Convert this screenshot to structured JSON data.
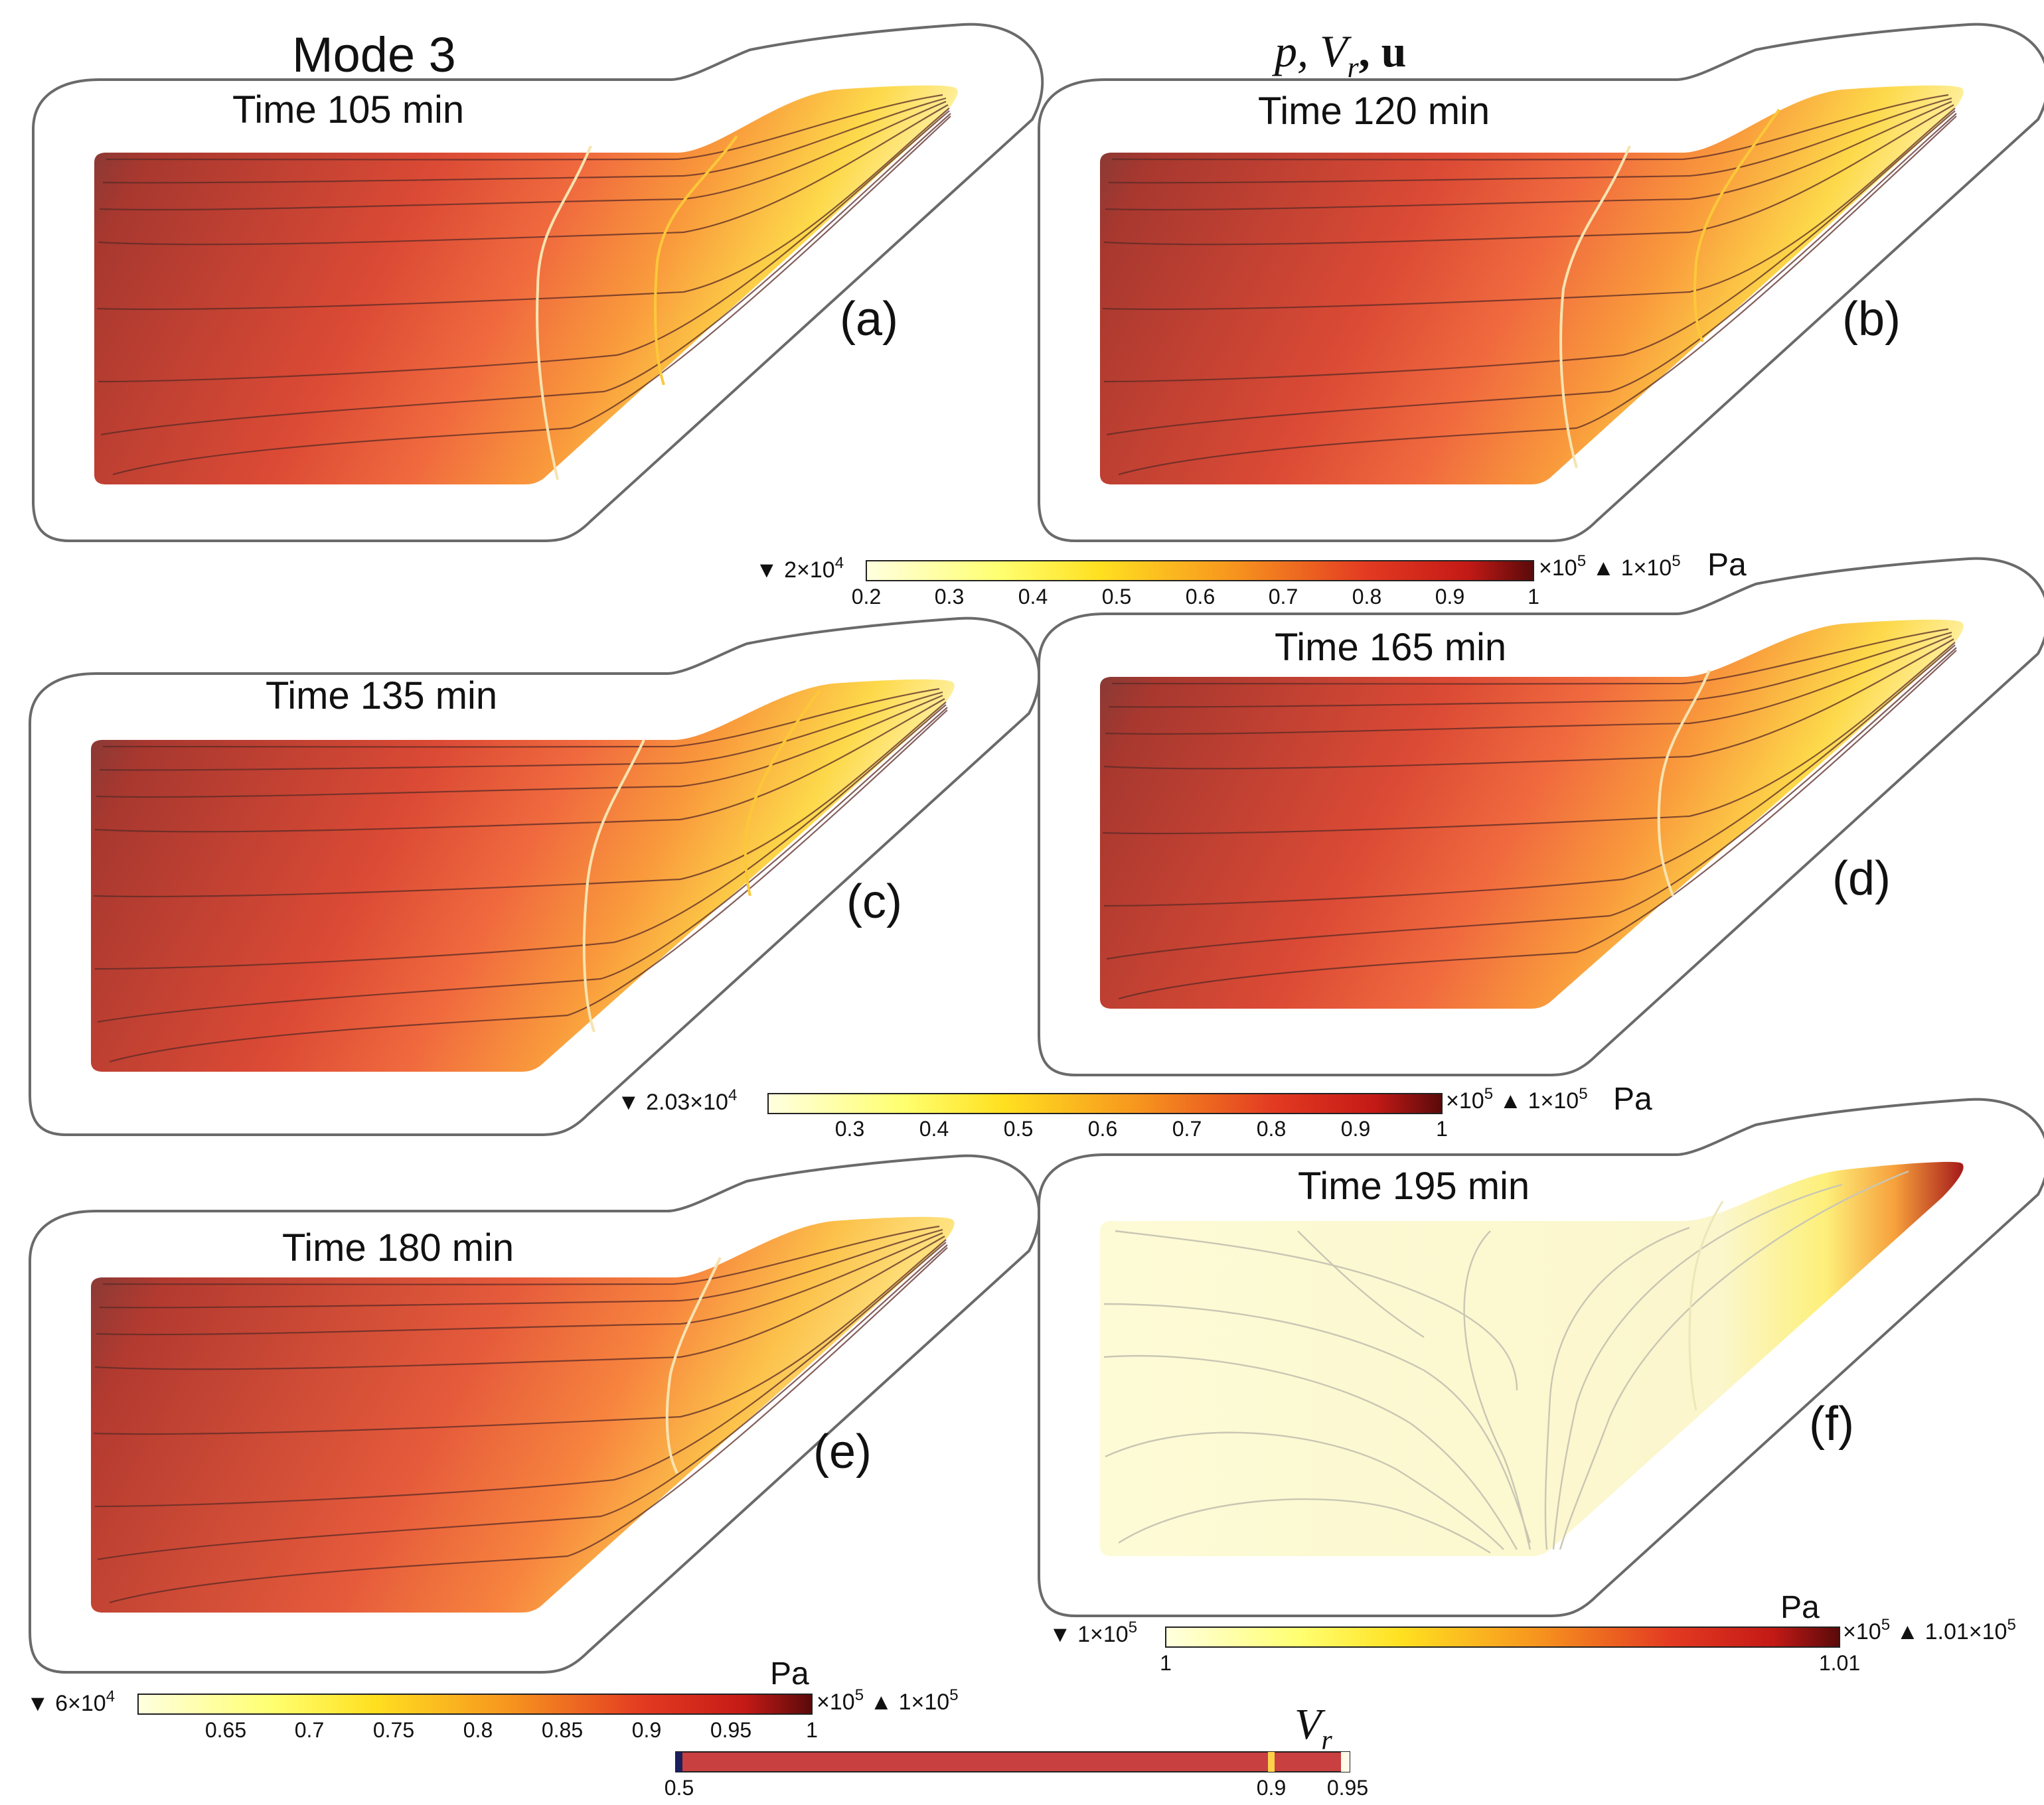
{
  "header": {
    "mode_title": "Mode 3",
    "fields_label": "p, V",
    "fields_sub": "r",
    "fields_rest": ", u"
  },
  "panels": [
    {
      "time": "Time 105 min",
      "letter": "(a)"
    },
    {
      "time": "Time 120 min",
      "letter": "(b)"
    },
    {
      "time": "Time 135 min",
      "letter": "(c)"
    },
    {
      "time": "Time 165 min",
      "letter": "(d)"
    },
    {
      "time": "Time 180 min",
      "letter": "(e)"
    },
    {
      "time": "Time 195 min",
      "letter": "(f)"
    }
  ],
  "colorbars": [
    {
      "min_label": "2×10",
      "min_exp": "4",
      "scale": "×10",
      "scale_exp": "5",
      "max_label": "1×10",
      "max_exp": "5",
      "unit": "Pa",
      "ticks": [
        "0.2",
        "0.3",
        "0.4",
        "0.5",
        "0.6",
        "0.7",
        "0.8",
        "0.9",
        "1"
      ]
    },
    {
      "min_label": "2.03×10",
      "min_exp": "4",
      "scale": "×10",
      "scale_exp": "5",
      "max_label": "1×10",
      "max_exp": "5",
      "unit": "Pa",
      "ticks": [
        "0.3",
        "0.4",
        "0.5",
        "0.6",
        "0.7",
        "0.8",
        "0.9",
        "1"
      ]
    },
    {
      "min_label": "6×10",
      "min_exp": "4",
      "scale": "×10",
      "scale_exp": "5",
      "max_label": "1×10",
      "max_exp": "5",
      "unit": "Pa",
      "ticks": [
        "0.65",
        "0.7",
        "0.75",
        "0.8",
        "0.85",
        "0.9",
        "0.95",
        "1"
      ]
    },
    {
      "min_label": "1×10",
      "min_exp": "5",
      "scale": "×10",
      "scale_exp": "5",
      "max_label": "1.01×10",
      "max_exp": "5",
      "unit": "Pa",
      "ticks": [
        "1",
        "1.01"
      ]
    }
  ],
  "vr_bar": {
    "title": "V",
    "title_sub": "r",
    "ticks": [
      "0.5",
      "0.9",
      "0.95"
    ]
  },
  "colors": {
    "dark_red": "#5a0a0a",
    "red": "#cc2b1f",
    "orange": "#f7951e",
    "yellow": "#fff230",
    "pale": "#ffffe0",
    "vr_fill": "#c94040",
    "vr_navy": "#1b1f5c"
  }
}
